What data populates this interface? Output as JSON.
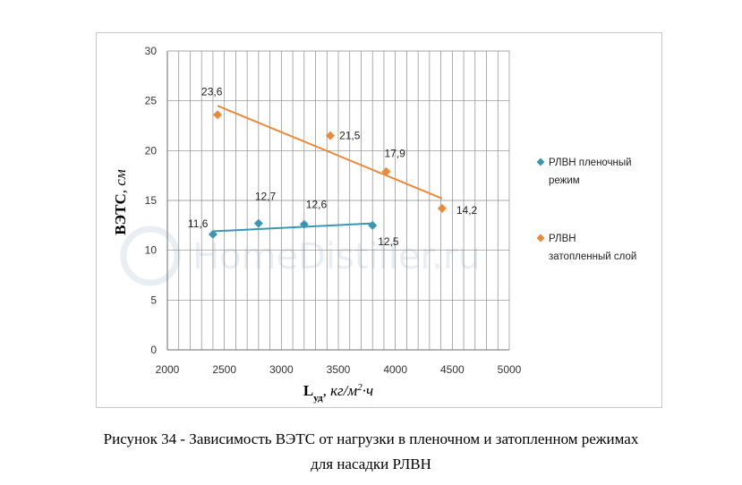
{
  "watermark": "HomeDistiller.ru",
  "caption": {
    "line1": "Рисунок 34 - Зависимость ВЭТС от нагрузки в пленочном и затопленном режимах",
    "line2": "для насадки РЛВН"
  },
  "chart_data": {
    "type": "scatter",
    "xlabel_main": "L",
    "xlabel_sub": "уд",
    "xlabel_units": ", кг/м",
    "xlabel_sup": "2",
    "xlabel_tail": "·ч",
    "ylabel_main": "ВЭТС",
    "ylabel_units": ", см",
    "xlim": [
      2000,
      5000
    ],
    "ylim": [
      0,
      30
    ],
    "xticks": [
      2000,
      2500,
      3000,
      3500,
      4000,
      4500,
      5000
    ],
    "yticks": [
      0,
      5,
      10,
      15,
      20,
      25,
      30
    ],
    "x_minor_step": 100,
    "y_major_step": 5,
    "grid": true,
    "legend_position": "right",
    "series": [
      {
        "name": "РЛВН пленочный режим",
        "legend_lines": [
          "РЛВН пленочный",
          "режим"
        ],
        "color": "#3a97b4",
        "marker": "diamond",
        "points": [
          {
            "x": 2400,
            "y": 11.6,
            "label": "11,6"
          },
          {
            "x": 2800,
            "y": 12.7,
            "label": "12,7"
          },
          {
            "x": 3200,
            "y": 12.6,
            "label": "12,6"
          },
          {
            "x": 3800,
            "y": 12.5,
            "label": "12,5"
          }
        ],
        "trendline": {
          "x": [
            2400,
            3800
          ],
          "y": [
            11.9,
            12.7
          ]
        }
      },
      {
        "name": "РЛВН затопленный слой",
        "legend_lines": [
          "РЛВН",
          "затопленный слой"
        ],
        "color": "#e98a3a",
        "marker": "diamond",
        "points": [
          {
            "x": 2440,
            "y": 23.6,
            "label": "23,6"
          },
          {
            "x": 3430,
            "y": 21.5,
            "label": "21,5"
          },
          {
            "x": 3920,
            "y": 17.9,
            "label": "17,9"
          },
          {
            "x": 4410,
            "y": 14.2,
            "label": "14,2"
          }
        ],
        "trendline": {
          "x": [
            2440,
            4410
          ],
          "y": [
            24.5,
            15.2
          ]
        }
      }
    ]
  }
}
